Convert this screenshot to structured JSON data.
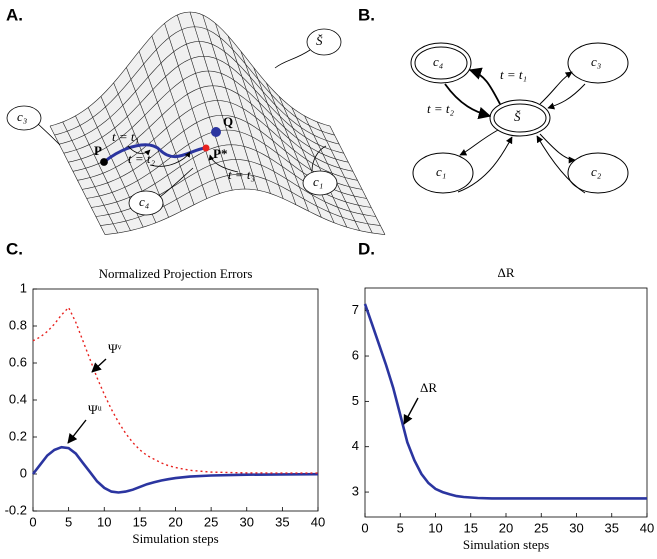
{
  "panel_labels": [
    "A.",
    "B.",
    "C.",
    "D."
  ],
  "panel_a": {
    "surface_label": "S̆",
    "callouts": [
      "c₃",
      "c₄",
      "c₁"
    ],
    "points": [
      "P",
      "Q",
      "P*"
    ],
    "times": [
      "t = t₁",
      "t = t₂",
      "t = t₃"
    ]
  },
  "panel_b": {
    "nodes": [
      "c₄",
      "c₃",
      "S̆",
      "c₁",
      "c₂"
    ],
    "edge_labels": [
      "t = t₁",
      "t = t₂"
    ]
  },
  "chart_data": [
    {
      "type": "line",
      "title": "Normalized Projection Errors",
      "x_label": "Simulation steps",
      "x": [
        0,
        1,
        2,
        3,
        4,
        5,
        6,
        7,
        8,
        9,
        10,
        11,
        12,
        13,
        14,
        15,
        16,
        17,
        18,
        19,
        20,
        22,
        25,
        30,
        35,
        40
      ],
      "series": [
        {
          "name": "Ψᵘ",
          "color": "#2b35a0",
          "dash": "solid",
          "values": [
            0,
            0.05,
            0.1,
            0.13,
            0.145,
            0.14,
            0.11,
            0.06,
            0.01,
            -0.04,
            -0.075,
            -0.095,
            -0.1,
            -0.095,
            -0.085,
            -0.07,
            -0.055,
            -0.045,
            -0.035,
            -0.028,
            -0.022,
            -0.014,
            -0.008,
            -0.004,
            -0.002,
            -0.001
          ]
        },
        {
          "name": "Ψᵛ",
          "color": "#e8221f",
          "dash": "dotted",
          "values": [
            0.72,
            0.74,
            0.77,
            0.81,
            0.86,
            0.9,
            0.82,
            0.72,
            0.62,
            0.52,
            0.43,
            0.35,
            0.28,
            0.22,
            0.17,
            0.13,
            0.1,
            0.08,
            0.06,
            0.045,
            0.035,
            0.02,
            0.01,
            0.006,
            0.005,
            0.005
          ]
        }
      ],
      "xlim": [
        0,
        40
      ],
      "xticks": [
        0,
        5,
        10,
        15,
        20,
        25,
        30,
        35,
        40
      ],
      "ylim": [
        -0.2,
        1
      ],
      "yticks": [
        -0.2,
        0,
        0.2,
        0.4,
        0.6,
        0.8,
        1
      ]
    },
    {
      "type": "line",
      "title": "ΔR",
      "x_label": "Simulation steps",
      "x": [
        0,
        1,
        2,
        3,
        4,
        5,
        6,
        7,
        8,
        9,
        10,
        11,
        12,
        13,
        14,
        15,
        16,
        18,
        20,
        25,
        30,
        35,
        40
      ],
      "series": [
        {
          "name": "ΔR",
          "color": "#2b35a0",
          "dash": "solid",
          "values": [
            7.15,
            6.7,
            6.25,
            5.8,
            5.3,
            4.7,
            4.1,
            3.7,
            3.4,
            3.2,
            3.07,
            3.0,
            2.95,
            2.91,
            2.89,
            2.88,
            2.87,
            2.86,
            2.86,
            2.86,
            2.86,
            2.86,
            2.86
          ]
        }
      ],
      "xlim": [
        0,
        40
      ],
      "xticks": [
        0,
        5,
        10,
        15,
        20,
        25,
        30,
        35,
        40
      ],
      "ylim": [
        2.45,
        7.5
      ],
      "yticks": [
        3,
        4,
        5,
        6,
        7
      ]
    }
  ]
}
